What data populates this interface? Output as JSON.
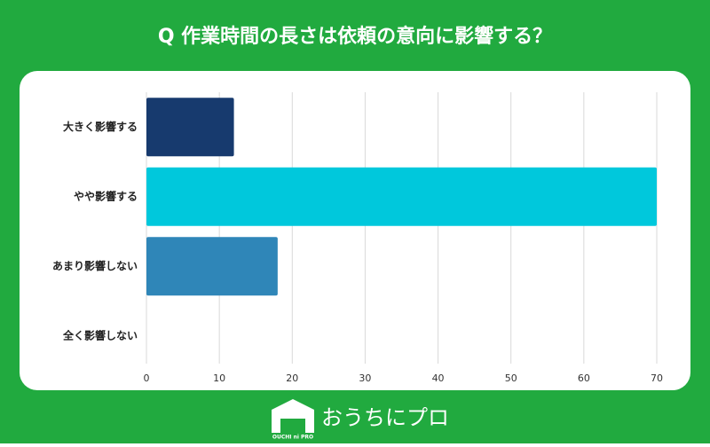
{
  "chart_data": {
    "type": "hbar",
    "title": "Q 作業時間の長さは依頼の意向に影響する？",
    "categories": [
      "大きく影響する",
      "やや影響する",
      "あまり影響しない",
      "全く影響しない"
    ],
    "values": [
      12,
      70,
      18,
      0
    ],
    "colors": [
      "#173a6e",
      "#00c8dc",
      "#2f86b8",
      "#2f86b8"
    ],
    "xlim": [
      0,
      70
    ],
    "xticks": [
      0,
      10,
      20,
      30,
      40,
      50,
      60,
      70
    ],
    "grid": true
  },
  "logo": {
    "name": "おうちにプロ",
    "mark": "OUCHI ni PRO"
  }
}
